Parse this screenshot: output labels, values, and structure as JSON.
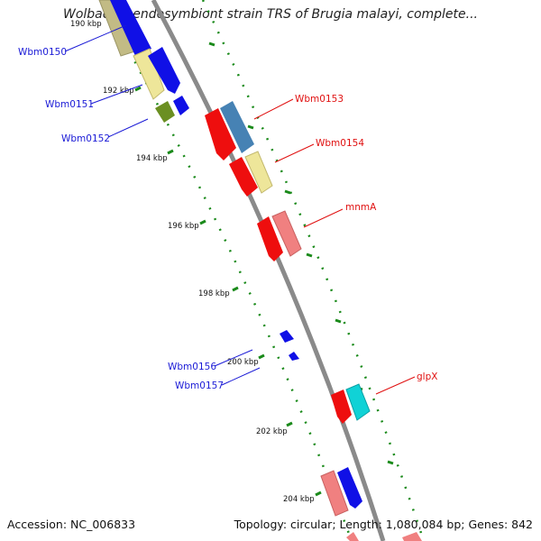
{
  "title": "Wolbachia endosymbiont strain TRS of Brugia malayi, complete...",
  "footer": {
    "accession": "Accession: NC_006833",
    "topology": "Topology: circular; Length: 1,080,084 bp; Genes: 842"
  },
  "tick_labels": [
    "190 kbp",
    "192 kbp",
    "194 kbp",
    "196 kbp",
    "198 kbp",
    "200 kbp",
    "202 kbp",
    "204 kbp"
  ],
  "gene_labels": {
    "left": [
      "Wbm0150",
      "Wbm0151",
      "Wbm0152",
      "Wbm0156",
      "Wbm0157"
    ],
    "right": [
      "Wbm0153",
      "Wbm0154",
      "mnmA",
      "glpX"
    ]
  },
  "colors": {
    "backbone": "#8a8a8a",
    "tick_dots": "#1a8a1a",
    "left_labels": "#1a1ad6",
    "right_labels": "#e01010"
  }
}
